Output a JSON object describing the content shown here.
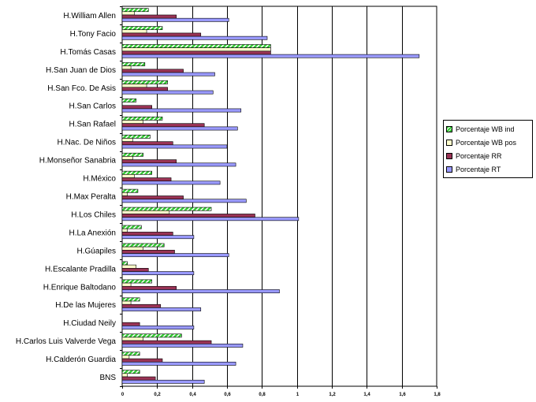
{
  "chart_data": {
    "type": "bar",
    "orientation": "horizontal",
    "categories": [
      "H.William Allen",
      "H.Tony Facio",
      "H.Tomás Casas",
      "H.San Juan de Dios",
      "H.San Fco. De Asis",
      "H.San Carlos",
      "H.San Rafael",
      "H.Nac. De Niños",
      "H.Monseñor Sanabria",
      "H.México",
      "H.Max Peralta",
      "H.Los Chiles",
      "H.La Anexión",
      "H.Gúapiles",
      "H.Escalante Pradilla",
      "H.Enrique Baltodano",
      "H.De las Mujeres",
      "H.Ciudad Neily",
      "H.Carlos Luis Valverde Vega",
      "H.Calderón Guardia",
      "BNS"
    ],
    "series": [
      {
        "name": "Porcentaje WB  ind",
        "color": "#33cc33",
        "pattern": "diagonal",
        "values": [
          0.15,
          0.23,
          0.85,
          0.13,
          0.26,
          0.08,
          0.23,
          0.16,
          0.12,
          0.17,
          0.09,
          0.51,
          0.11,
          0.24,
          0.03,
          0.17,
          0.1,
          0.0,
          0.34,
          0.1,
          0.1
        ]
      },
      {
        "name": "Porcentaje WB pos",
        "color": "#ffffcc",
        "values": [
          0.07,
          0.14,
          0.85,
          0.05,
          0.14,
          0.0,
          0.12,
          0.06,
          0.06,
          0.07,
          0.03,
          0.27,
          0.03,
          0.12,
          0.08,
          0.05,
          0.05,
          0.0,
          0.12,
          0.04,
          0.03
        ]
      },
      {
        "name": "Porcentaje RR",
        "color": "#993355",
        "values": [
          0.31,
          0.45,
          0.85,
          0.35,
          0.26,
          0.17,
          0.47,
          0.29,
          0.31,
          0.28,
          0.35,
          0.76,
          0.29,
          0.3,
          0.15,
          0.31,
          0.22,
          0.1,
          0.51,
          0.23,
          0.19
        ]
      },
      {
        "name": "Porcentaje RT",
        "color": "#9999ff",
        "values": [
          0.61,
          0.83,
          1.7,
          0.53,
          0.52,
          0.68,
          0.66,
          0.6,
          0.65,
          0.56,
          0.71,
          1.01,
          0.41,
          0.61,
          0.41,
          0.9,
          0.45,
          0.41,
          0.69,
          0.65,
          0.47
        ]
      }
    ],
    "xlim": [
      0,
      1.8
    ],
    "xticks": [
      "0",
      "0,2",
      "0,4",
      "0,6",
      "0,8",
      "1",
      "1,2",
      "1,4",
      "1,6",
      "1,8"
    ],
    "grid": true,
    "legend_position": "right"
  }
}
